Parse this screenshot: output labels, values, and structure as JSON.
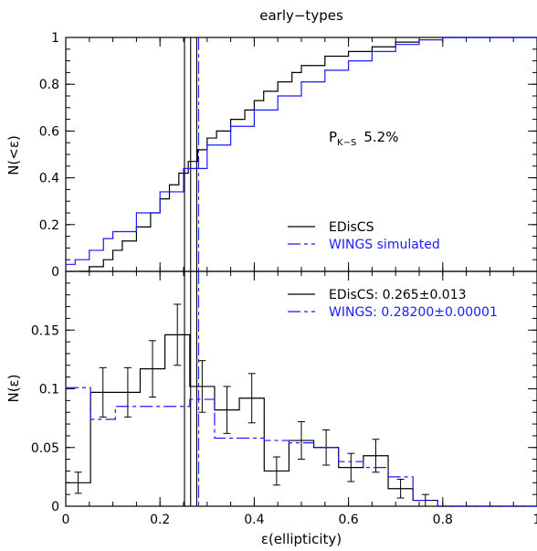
{
  "page": {
    "title": "early−types"
  },
  "colors": {
    "edis": "#000000",
    "wings": "#1a1aff"
  },
  "chart_data": [
    {
      "type": "line",
      "panel": "top",
      "ylabel": "N(<ε)",
      "xlim": [
        0,
        1
      ],
      "ylim": [
        0,
        1
      ],
      "x_ticks": [
        "0",
        "0.2",
        "0.4",
        "0.6",
        "0.8",
        "1"
      ],
      "y_ticks": [
        "0",
        "0.2",
        "0.4",
        "0.6",
        "0.8",
        "1"
      ],
      "annotation": {
        "base": "P",
        "sub": "K−S",
        "value": "5.2%"
      },
      "legend": [
        "EDisCS",
        "WINGS simulated"
      ],
      "legend_position": "lower-right",
      "series": [
        {
          "name": "EDisCS",
          "color": "#000000",
          "x": [
            0.03,
            0.05,
            0.08,
            0.1,
            0.12,
            0.15,
            0.18,
            0.2,
            0.22,
            0.24,
            0.26,
            0.28,
            0.3,
            0.32,
            0.35,
            0.38,
            0.4,
            0.42,
            0.45,
            0.48,
            0.5,
            0.55,
            0.6,
            0.65,
            0.7,
            0.75,
            0.78,
            0.8,
            0.82,
            0.85
          ],
          "y": [
            0.0,
            0.02,
            0.05,
            0.09,
            0.13,
            0.19,
            0.25,
            0.31,
            0.37,
            0.42,
            0.47,
            0.52,
            0.57,
            0.6,
            0.65,
            0.69,
            0.73,
            0.77,
            0.81,
            0.85,
            0.88,
            0.92,
            0.94,
            0.96,
            0.98,
            0.99,
            0.99,
            1.0,
            1.0,
            1.0
          ]
        },
        {
          "name": "WINGS simulated",
          "color": "#1a1aff",
          "x": [
            0.0,
            0.02,
            0.05,
            0.08,
            0.1,
            0.15,
            0.2,
            0.25,
            0.3,
            0.35,
            0.4,
            0.45,
            0.5,
            0.55,
            0.6,
            0.65,
            0.7,
            0.75,
            0.8,
            0.85,
            0.9,
            1.0
          ],
          "y": [
            0.03,
            0.05,
            0.09,
            0.14,
            0.17,
            0.25,
            0.34,
            0.44,
            0.54,
            0.62,
            0.69,
            0.75,
            0.81,
            0.86,
            0.9,
            0.94,
            0.97,
            0.99,
            1.0,
            1.0,
            1.0,
            1.0
          ]
        }
      ],
      "vlines": [
        {
          "x": 0.252,
          "color": "#000000",
          "style": "solid"
        },
        {
          "x": 0.265,
          "color": "#000000",
          "style": "solid"
        },
        {
          "x": 0.278,
          "color": "#000000",
          "style": "solid"
        },
        {
          "x": 0.282,
          "color": "#1a1aff",
          "style": "dashed"
        }
      ]
    },
    {
      "type": "bar",
      "panel": "bottom",
      "xlabel": "ε(ellipticity)",
      "ylabel": "N(ε)",
      "xlim": [
        0,
        1
      ],
      "ylim": [
        0,
        0.2
      ],
      "x_ticks": [
        "0",
        "0.2",
        "0.4",
        "0.6",
        "0.8",
        "1"
      ],
      "y_ticks": [
        "0",
        "0.05",
        "0.1",
        "0.15"
      ],
      "legend": [
        "EDisCS: 0.265±0.013",
        "WINGS: 0.28200±0.00001"
      ],
      "legend_position": "top-right",
      "bin_edges": [
        0,
        0.0526,
        0.1053,
        0.1579,
        0.2105,
        0.2632,
        0.3158,
        0.3684,
        0.4211,
        0.4737,
        0.5263,
        0.5789,
        0.6316,
        0.6842,
        0.7368,
        0.7895,
        0.8421,
        0.8947,
        0.9474,
        1.0
      ],
      "series": [
        {
          "name": "EDisCS: 0.265±0.013",
          "color": "#000000",
          "values": [
            0.02,
            0.097,
            0.097,
            0.117,
            0.146,
            0.102,
            0.082,
            0.092,
            0.03,
            0.056,
            0.05,
            0.033,
            0.043,
            0.015,
            0.005,
            0.0,
            0.0,
            0.0,
            0.0
          ],
          "errors": [
            0.009,
            0.021,
            0.021,
            0.024,
            0.026,
            0.022,
            0.02,
            0.021,
            0.012,
            0.016,
            0.015,
            0.012,
            0.014,
            0.008,
            0.005,
            0.0,
            0.0,
            0.0,
            0.0
          ]
        },
        {
          "name": "WINGS: 0.28200±0.00001",
          "color": "#1a1aff",
          "values": [
            0.101,
            0.074,
            0.085,
            0.085,
            0.085,
            0.091,
            0.058,
            0.058,
            0.056,
            0.054,
            0.05,
            0.038,
            0.033,
            0.025,
            0.005,
            0.0,
            0.0,
            0.0,
            0.0
          ]
        }
      ],
      "vlines": [
        {
          "x": 0.252,
          "color": "#000000",
          "style": "solid"
        },
        {
          "x": 0.265,
          "color": "#000000",
          "style": "solid"
        },
        {
          "x": 0.278,
          "color": "#000000",
          "style": "solid"
        },
        {
          "x": 0.282,
          "color": "#1a1aff",
          "style": "dashed"
        }
      ]
    }
  ]
}
